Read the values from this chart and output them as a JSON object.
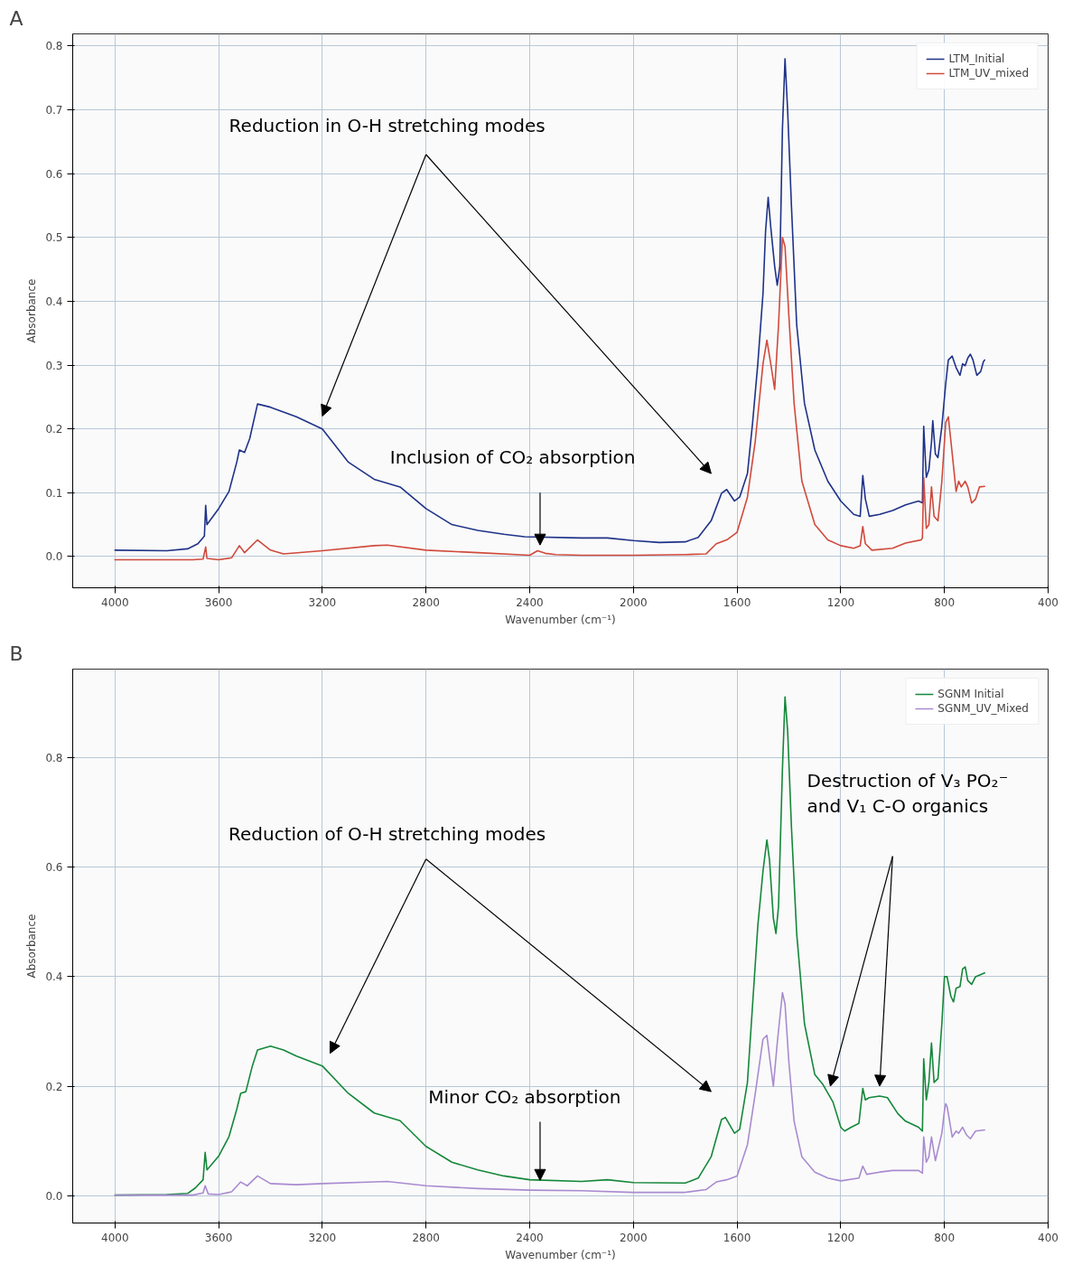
{
  "chart_data": [
    {
      "type": "line",
      "title": "A",
      "xlabel": "Wavenumber (cm⁻¹)",
      "ylabel": "Absorbance",
      "xlim": [
        4163,
        400
      ],
      "ylim": [
        -0.049,
        0.819
      ],
      "xticks": [
        4000,
        3600,
        3200,
        2800,
        2400,
        2000,
        1600,
        1200,
        800,
        400
      ],
      "yticks": [
        {
          "value": 0,
          "label": "0.0"
        },
        0.1,
        0.2,
        0.3,
        0.4,
        0.5,
        0.6,
        0.7,
        0.8
      ],
      "grid": true,
      "legend": "top right",
      "marker": "none",
      "line_style": "solid",
      "series": [
        {
          "name": "LTM_Initial",
          "color": "#1f3288",
          "x": [
            4000,
            3800,
            3720,
            3680,
            3655,
            3650,
            3645,
            3600,
            3560,
            3530,
            3520,
            3500,
            3480,
            3450,
            3400,
            3300,
            3200,
            3100,
            3000,
            2900,
            2800,
            2700,
            2600,
            2500,
            2420,
            2200,
            2100,
            2000,
            1900,
            1800,
            1750,
            1700,
            1660,
            1640,
            1610,
            1590,
            1560,
            1540,
            1520,
            1500,
            1490,
            1480,
            1470,
            1455,
            1445,
            1435,
            1425,
            1415,
            1405,
            1390,
            1370,
            1340,
            1300,
            1250,
            1200,
            1150,
            1125,
            1115,
            1105,
            1090,
            1050,
            1000,
            950,
            900,
            885,
            880,
            870,
            860,
            850,
            845,
            835,
            825,
            810,
            795,
            785,
            770,
            755,
            740,
            730,
            720,
            710,
            700,
            690,
            675,
            660,
            650,
            645
          ],
          "values": [
            0.01,
            0.009,
            0.012,
            0.02,
            0.032,
            0.08,
            0.05,
            0.075,
            0.102,
            0.148,
            0.167,
            0.163,
            0.185,
            0.239,
            0.234,
            0.219,
            0.2,
            0.148,
            0.121,
            0.109,
            0.075,
            0.05,
            0.041,
            0.035,
            0.031,
            0.029,
            0.029,
            0.025,
            0.022,
            0.023,
            0.03,
            0.056,
            0.099,
            0.105,
            0.087,
            0.093,
            0.13,
            0.21,
            0.302,
            0.412,
            0.51,
            0.563,
            0.516,
            0.455,
            0.425,
            0.455,
            0.67,
            0.78,
            0.7,
            0.547,
            0.363,
            0.24,
            0.167,
            0.118,
            0.087,
            0.066,
            0.063,
            0.127,
            0.09,
            0.063,
            0.066,
            0.072,
            0.081,
            0.087,
            0.084,
            0.204,
            0.124,
            0.136,
            0.179,
            0.213,
            0.161,
            0.155,
            0.204,
            0.271,
            0.308,
            0.314,
            0.296,
            0.284,
            0.302,
            0.299,
            0.311,
            0.317,
            0.308,
            0.284,
            0.29,
            0.305,
            0.308
          ]
        },
        {
          "name": "LTM_UV_mixed",
          "color": "#d04a3c",
          "x": [
            4000,
            3700,
            3660,
            3650,
            3645,
            3600,
            3550,
            3520,
            3500,
            3450,
            3400,
            3350,
            3200,
            3000,
            2950,
            2800,
            2600,
            2400,
            2370,
            2340,
            2300,
            2200,
            2000,
            1800,
            1720,
            1680,
            1640,
            1600,
            1560,
            1530,
            1500,
            1485,
            1470,
            1455,
            1440,
            1425,
            1415,
            1400,
            1380,
            1350,
            1300,
            1250,
            1200,
            1150,
            1125,
            1115,
            1105,
            1080,
            1000,
            950,
            890,
            885,
            880,
            870,
            860,
            850,
            840,
            825,
            810,
            795,
            785,
            770,
            755,
            745,
            735,
            720,
            710,
            695,
            680,
            665,
            645
          ],
          "values": [
            -0.005,
            -0.005,
            -0.004,
            0.015,
            -0.003,
            -0.005,
            -0.002,
            0.017,
            0.006,
            0.026,
            0.01,
            0.004,
            0.009,
            0.017,
            0.018,
            0.01,
            0.006,
            0.002,
            0.009,
            0.005,
            0.003,
            0.002,
            0.002,
            0.003,
            0.004,
            0.02,
            0.026,
            0.038,
            0.093,
            0.18,
            0.302,
            0.339,
            0.302,
            0.262,
            0.363,
            0.5,
            0.486,
            0.376,
            0.24,
            0.118,
            0.05,
            0.026,
            0.017,
            0.013,
            0.017,
            0.047,
            0.02,
            0.01,
            0.013,
            0.021,
            0.026,
            0.029,
            0.124,
            0.044,
            0.05,
            0.109,
            0.063,
            0.056,
            0.118,
            0.21,
            0.219,
            0.161,
            0.102,
            0.118,
            0.109,
            0.118,
            0.109,
            0.084,
            0.09,
            0.109,
            0.11
          ]
        }
      ],
      "annotations": [
        "Reduction in O-H stretching modes",
        "Inclusion of CO₂ absorption"
      ]
    },
    {
      "type": "line",
      "title": "B",
      "xlabel": "Wavenumber (cm⁻¹)",
      "ylabel": "Absorbance",
      "xlim": [
        4163,
        400
      ],
      "ylim": [
        -0.05,
        0.962
      ],
      "xticks": [
        4000,
        3600,
        3200,
        2800,
        2400,
        2000,
        1600,
        1200,
        800,
        400
      ],
      "yticks": [
        {
          "value": 0,
          "label": "0.0"
        },
        0.2,
        0.4,
        0.6,
        0.8
      ],
      "grid": true,
      "legend": "top right",
      "marker": "none",
      "line_style": "solid",
      "series": [
        {
          "name": "SGNM Initial",
          "color": "#15873a",
          "x": [
            4000,
            3800,
            3720,
            3690,
            3660,
            3652,
            3645,
            3600,
            3560,
            3530,
            3515,
            3495,
            3470,
            3450,
            3400,
            3350,
            3300,
            3200,
            3100,
            3000,
            2900,
            2800,
            2700,
            2600,
            2500,
            2400,
            2200,
            2100,
            2000,
            1800,
            1750,
            1700,
            1660,
            1645,
            1610,
            1590,
            1560,
            1540,
            1520,
            1500,
            1485,
            1475,
            1460,
            1450,
            1440,
            1425,
            1415,
            1405,
            1390,
            1370,
            1340,
            1300,
            1270,
            1230,
            1200,
            1185,
            1160,
            1130,
            1115,
            1105,
            1090,
            1050,
            1020,
            980,
            950,
            900,
            885,
            880,
            870,
            860,
            850,
            840,
            825,
            810,
            800,
            790,
            775,
            765,
            755,
            740,
            730,
            720,
            710,
            695,
            680,
            645
          ],
          "values": [
            0.001,
            0.002,
            0.004,
            0.014,
            0.029,
            0.079,
            0.047,
            0.072,
            0.108,
            0.158,
            0.187,
            0.19,
            0.237,
            0.266,
            0.273,
            0.266,
            0.255,
            0.237,
            0.187,
            0.151,
            0.137,
            0.09,
            0.061,
            0.047,
            0.036,
            0.029,
            0.026,
            0.029,
            0.024,
            0.023,
            0.032,
            0.071,
            0.139,
            0.143,
            0.114,
            0.121,
            0.207,
            0.35,
            0.493,
            0.593,
            0.65,
            0.614,
            0.507,
            0.479,
            0.529,
            0.779,
            0.911,
            0.85,
            0.671,
            0.479,
            0.314,
            0.221,
            0.204,
            0.171,
            0.125,
            0.118,
            0.125,
            0.132,
            0.196,
            0.175,
            0.179,
            0.182,
            0.179,
            0.15,
            0.136,
            0.125,
            0.118,
            0.25,
            0.175,
            0.207,
            0.279,
            0.207,
            0.214,
            0.314,
            0.4,
            0.4,
            0.364,
            0.354,
            0.379,
            0.382,
            0.414,
            0.418,
            0.393,
            0.386,
            0.4,
            0.407
          ]
        },
        {
          "name": "SGNM_UV_Mixed",
          "color": "#a98bd0",
          "x": [
            4000,
            3700,
            3660,
            3652,
            3640,
            3600,
            3550,
            3515,
            3490,
            3450,
            3400,
            3300,
            3200,
            3000,
            2950,
            2800,
            2600,
            2400,
            2200,
            2000,
            1800,
            1720,
            1680,
            1640,
            1600,
            1560,
            1530,
            1500,
            1485,
            1470,
            1460,
            1445,
            1425,
            1415,
            1400,
            1380,
            1350,
            1300,
            1250,
            1200,
            1130,
            1115,
            1100,
            1050,
            1000,
            900,
            885,
            880,
            870,
            860,
            850,
            835,
            810,
            800,
            795,
            790,
            785,
            770,
            755,
            745,
            730,
            715,
            700,
            680,
            645
          ],
          "values": [
            0.001,
            0.001,
            0.005,
            0.018,
            0.003,
            0.002,
            0.007,
            0.025,
            0.018,
            0.036,
            0.022,
            0.02,
            0.022,
            0.025,
            0.026,
            0.018,
            0.013,
            0.01,
            0.009,
            0.006,
            0.006,
            0.011,
            0.025,
            0.029,
            0.036,
            0.093,
            0.186,
            0.286,
            0.293,
            0.236,
            0.2,
            0.279,
            0.371,
            0.35,
            0.243,
            0.136,
            0.071,
            0.043,
            0.032,
            0.027,
            0.032,
            0.054,
            0.039,
            0.043,
            0.046,
            0.046,
            0.041,
            0.107,
            0.061,
            0.071,
            0.107,
            0.064,
            0.114,
            0.155,
            0.168,
            0.163,
            0.15,
            0.107,
            0.118,
            0.114,
            0.125,
            0.111,
            0.104,
            0.118,
            0.12
          ]
        }
      ],
      "annotations": [
        "Reduction of O-H stretching modes",
        {
          "text": "Minor CO₂ absorption",
          "x": 2360,
          "y": 0.028
        },
        "Destruction of V₃ PO₂⁻\nand V₁ C-O organics"
      ]
    }
  ]
}
